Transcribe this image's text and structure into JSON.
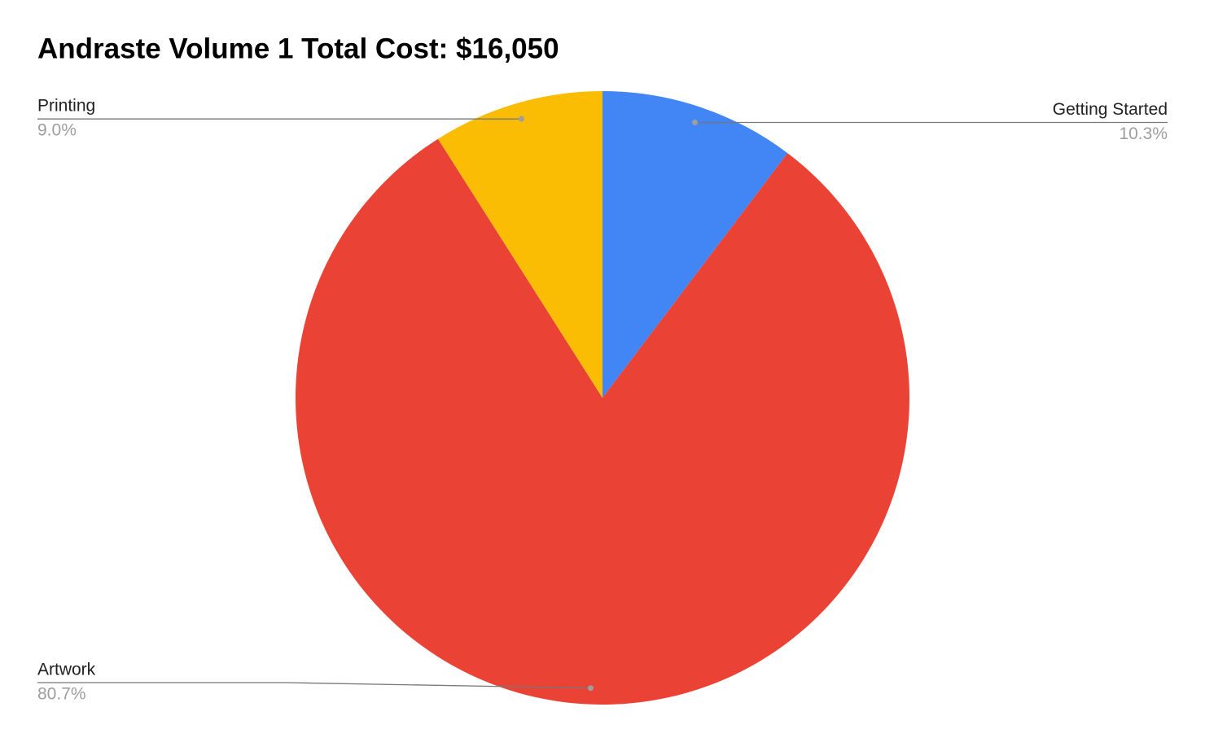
{
  "chart_data": {
    "type": "pie",
    "title": "Andraste Volume 1 Total Cost: $16,050",
    "categories": [
      "Getting Started",
      "Artwork",
      "Printing"
    ],
    "values": [
      10.3,
      80.7,
      9.0
    ],
    "value_labels": [
      "10.3%",
      "80.7%",
      "9.0%"
    ],
    "colors": [
      "#4285f4",
      "#ea4335",
      "#fbbc04"
    ]
  }
}
